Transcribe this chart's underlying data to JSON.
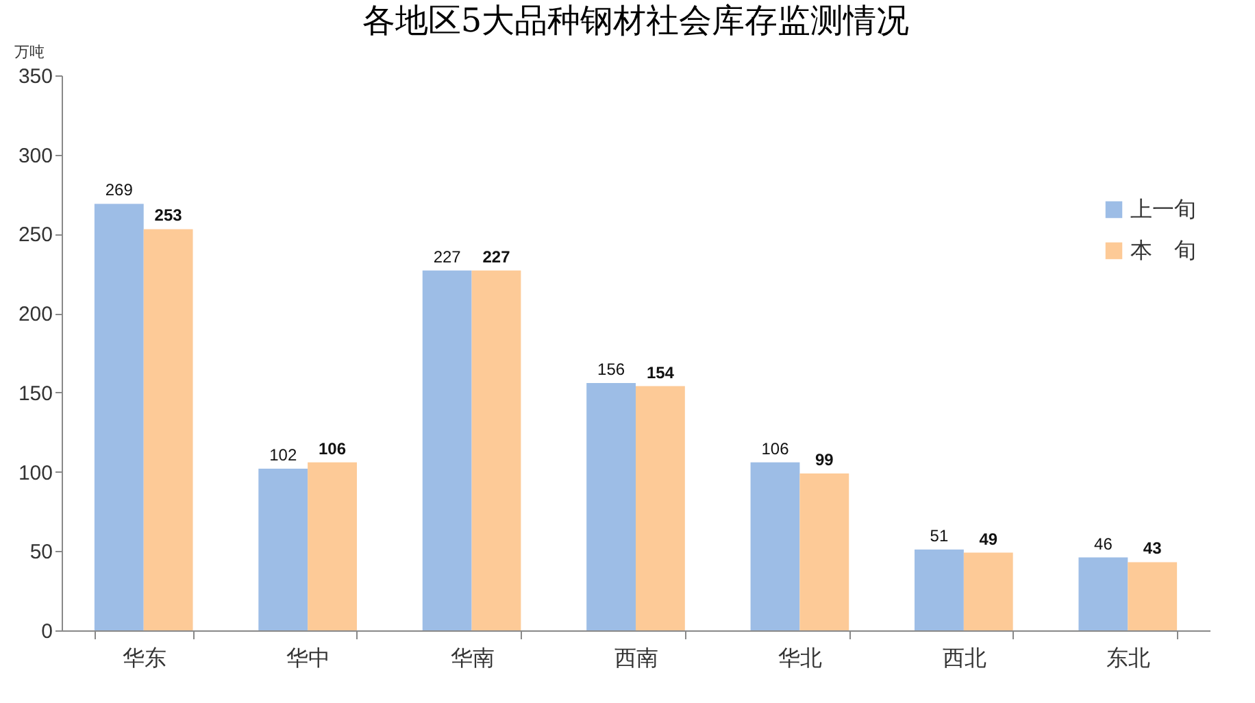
{
  "chart_data": {
    "type": "bar",
    "title": "各地区5大品种钢材社会库存监测情况",
    "ylabel": "万吨",
    "categories": [
      "华东",
      "华中",
      "华南",
      "西南",
      "华北",
      "西北",
      "东北"
    ],
    "series": [
      {
        "name": "上一旬",
        "color": "#9dbde6",
        "values": [
          269,
          102,
          227,
          156,
          106,
          51,
          46
        ]
      },
      {
        "name": "本　旬",
        "color": "#fdca97",
        "values": [
          253,
          106,
          227,
          154,
          99,
          49,
          43
        ]
      }
    ],
    "ylim": [
      0,
      350
    ],
    "yticks": [
      0,
      50,
      100,
      150,
      200,
      250,
      300,
      350
    ],
    "grid": false,
    "legend": "top right",
    "data_labels": true
  }
}
